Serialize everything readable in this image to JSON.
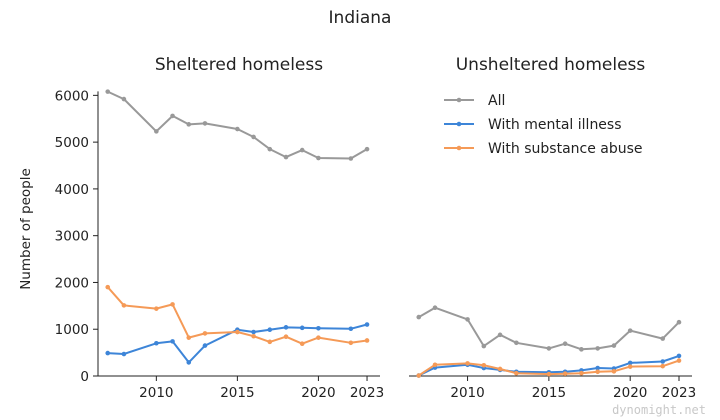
{
  "chart_data": {
    "title": "Indiana",
    "watermark": "dynomight.net",
    "ylabel": "Number of people",
    "ylim": [
      0,
      6200
    ],
    "yticks": [
      0,
      1000,
      2000,
      3000,
      4000,
      5000,
      6000
    ],
    "xlim": [
      2006.4,
      2023.8
    ],
    "xticks": [
      2010,
      2015,
      2020,
      2023
    ],
    "grid": false,
    "legend_location": "top-right of right panel",
    "series_meta": [
      {
        "key": "all",
        "name": "All",
        "color": "#999999"
      },
      {
        "key": "mental",
        "name": "With mental illness",
        "color": "#3d85d8"
      },
      {
        "key": "substance",
        "name": "With substance abuse",
        "color": "#f59a57"
      }
    ],
    "panels": [
      {
        "type": "line",
        "title": "Sheltered homeless",
        "x": [
          2007,
          2008,
          2010,
          2011,
          2012,
          2013,
          2015,
          2016,
          2017,
          2018,
          2019,
          2020,
          2022,
          2023
        ],
        "series": [
          {
            "key": "all",
            "values": [
              6080,
              5920,
              5230,
              5560,
              5380,
              5400,
              5280,
              5110,
              4850,
              4680,
              4830,
              4660,
              4650,
              4850
            ]
          },
          {
            "key": "mental",
            "values": [
              490,
              470,
              700,
              740,
              290,
              650,
              990,
              940,
              990,
              1040,
              1030,
              1020,
              1010,
              1100
            ]
          },
          {
            "key": "substance",
            "values": [
              1900,
              1510,
              1440,
              1530,
              820,
              910,
              940,
              850,
              730,
              840,
              690,
              820,
              710,
              760
            ]
          }
        ]
      },
      {
        "type": "line",
        "title": "Unsheltered homeless",
        "x": [
          2007,
          2008,
          2010,
          2011,
          2012,
          2013,
          2015,
          2016,
          2017,
          2018,
          2019,
          2020,
          2022,
          2023
        ],
        "series": [
          {
            "key": "all",
            "values": [
              1260,
              1460,
              1210,
              640,
              880,
              710,
              590,
              690,
              570,
              590,
              650,
              970,
              800,
              1150
            ]
          },
          {
            "key": "mental",
            "values": [
              10,
              180,
              240,
              170,
              130,
              90,
              80,
              90,
              120,
              170,
              160,
              280,
              310,
              430
            ]
          },
          {
            "key": "substance",
            "values": [
              10,
              240,
              270,
              230,
              150,
              60,
              40,
              50,
              60,
              90,
              100,
              200,
              210,
              330
            ]
          }
        ]
      }
    ]
  }
}
